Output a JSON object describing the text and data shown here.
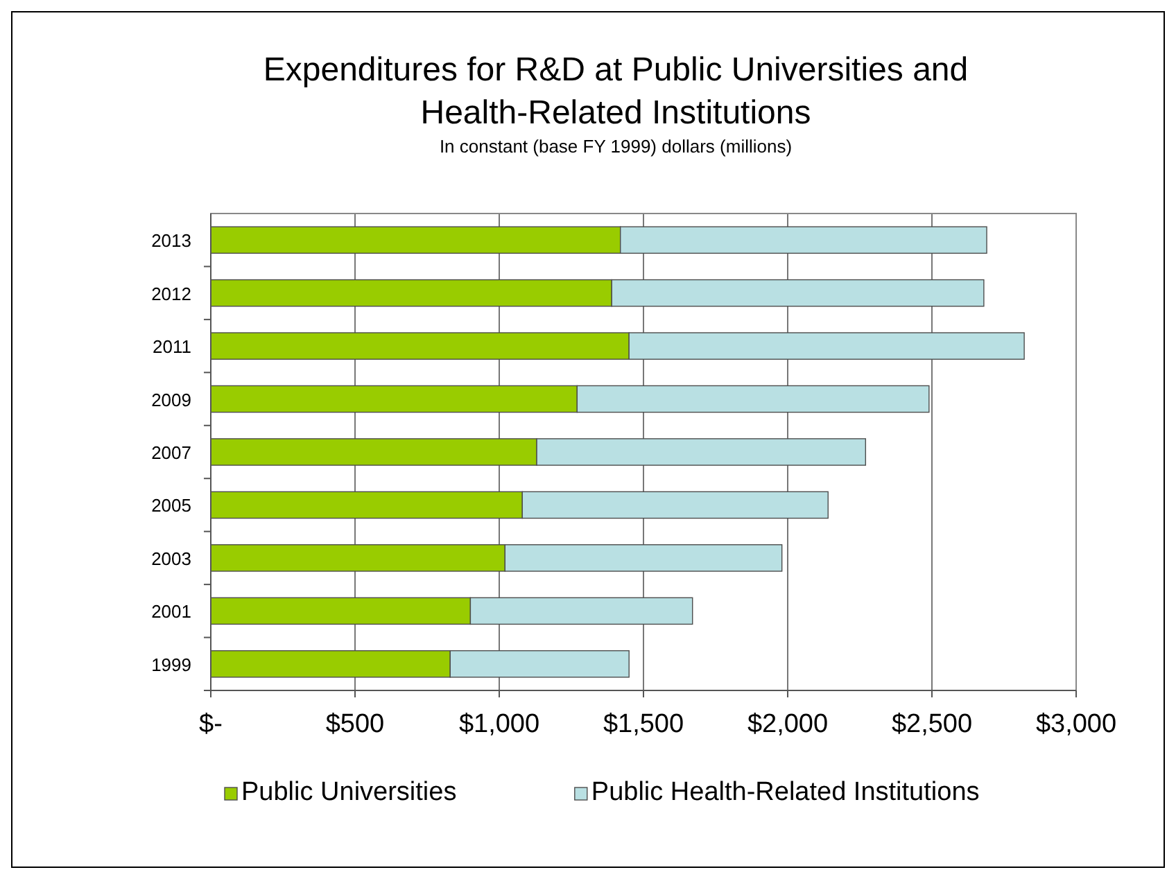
{
  "chart_data": {
    "type": "bar",
    "orientation": "horizontal",
    "stacked": true,
    "title": "Expenditures for R&D at Public Universities and Health-Related Institutions",
    "subtitle": "In constant (base FY 1999) dollars (millions)",
    "categories": [
      "2013",
      "2012",
      "2011",
      "2009",
      "2007",
      "2005",
      "2003",
      "2001",
      "1999"
    ],
    "series": [
      {
        "name": "Public Universities",
        "color": "#99cc00",
        "values": [
          1420,
          1390,
          1450,
          1270,
          1130,
          1080,
          1020,
          900,
          830
        ]
      },
      {
        "name": "Public Health-Related Institutions",
        "color": "#b9e0e3",
        "values": [
          1270,
          1290,
          1370,
          1220,
          1140,
          1060,
          960,
          770,
          620
        ]
      }
    ],
    "xlim": [
      0,
      3000
    ],
    "xticks": [
      {
        "value": 0,
        "label": "$-"
      },
      {
        "value": 500,
        "label": "$500"
      },
      {
        "value": 1000,
        "label": "$1,000"
      },
      {
        "value": 1500,
        "label": "$1,500"
      },
      {
        "value": 2000,
        "label": "$2,000"
      },
      {
        "value": 2500,
        "label": "$2,500"
      },
      {
        "value": 3000,
        "label": "$3,000"
      }
    ],
    "grid": "x",
    "legend": "bottom"
  }
}
